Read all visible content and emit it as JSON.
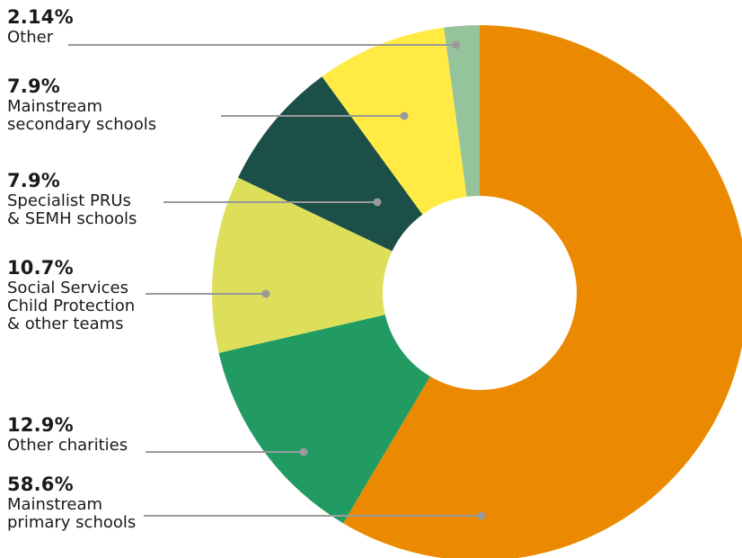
{
  "chart_data": {
    "type": "pie",
    "title": "",
    "donut": true,
    "slices": [
      {
        "value_label": "58.6%",
        "value": 58.6,
        "label": "Mainstream\nprimary schools",
        "color": "#EB8A00"
      },
      {
        "value_label": "12.9%",
        "value": 12.9,
        "label": "Other charities",
        "color": "#229B63"
      },
      {
        "value_label": "10.7%",
        "value": 10.7,
        "label": "Social Services\nChild Protection\n& other teams",
        "color": "#DDDF5A"
      },
      {
        "value_label": "7.9%",
        "value": 7.9,
        "label": "Specialist PRUs\n& SEMH schools",
        "color": "#1B4F47"
      },
      {
        "value_label": "7.9%",
        "value": 7.9,
        "label": "Mainstream\nsecondary schools",
        "color": "#FFEB43"
      },
      {
        "value_label": "2.14%",
        "value": 2.14,
        "label": "Other",
        "color": "#95C49C"
      }
    ]
  }
}
